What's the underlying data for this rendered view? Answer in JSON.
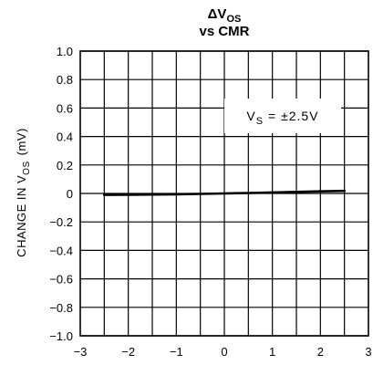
{
  "chart_data": {
    "type": "line",
    "title_main": "ΔV",
    "title_sub": "OS",
    "title_line2": "vs CMR",
    "ylabel_main": "CHANGE IN V",
    "ylabel_sub": "OS",
    "ylabel_unit": "(mV)",
    "xlabel": "",
    "xlim": [
      -3,
      3
    ],
    "ylim": [
      -1.0,
      1.0
    ],
    "x_ticks": [
      -3,
      -2,
      -1,
      0,
      1,
      2,
      3
    ],
    "x_tick_labels": [
      "−3",
      "−2",
      "−1",
      "0",
      "1",
      "2",
      "3"
    ],
    "y_ticks": [
      1.0,
      0.8,
      0.6,
      0.4,
      0.2,
      0,
      -0.2,
      -0.4,
      -0.6,
      -0.8,
      -1.0
    ],
    "y_tick_labels": [
      "1.0",
      "0.8",
      "0.6",
      "0.4",
      "0.2",
      "0",
      "−0.2",
      "−0.4",
      "−0.6",
      "−0.8",
      "−1.0"
    ],
    "x_minor_step": 0.5,
    "grid": true,
    "annotation": {
      "main": "V",
      "sub": "S",
      "rest": " = ±2.5V",
      "position": "top-right"
    },
    "series": [
      {
        "x": [
          -2.5,
          -2.0,
          -1.5,
          -1.0,
          -0.5,
          0.0,
          0.5,
          1.0,
          1.5,
          2.0,
          2.5
        ],
        "values": [
          -0.01,
          -0.009,
          -0.008,
          -0.006,
          -0.003,
          0.0,
          0.003,
          0.007,
          0.011,
          0.015,
          0.018
        ]
      }
    ]
  }
}
